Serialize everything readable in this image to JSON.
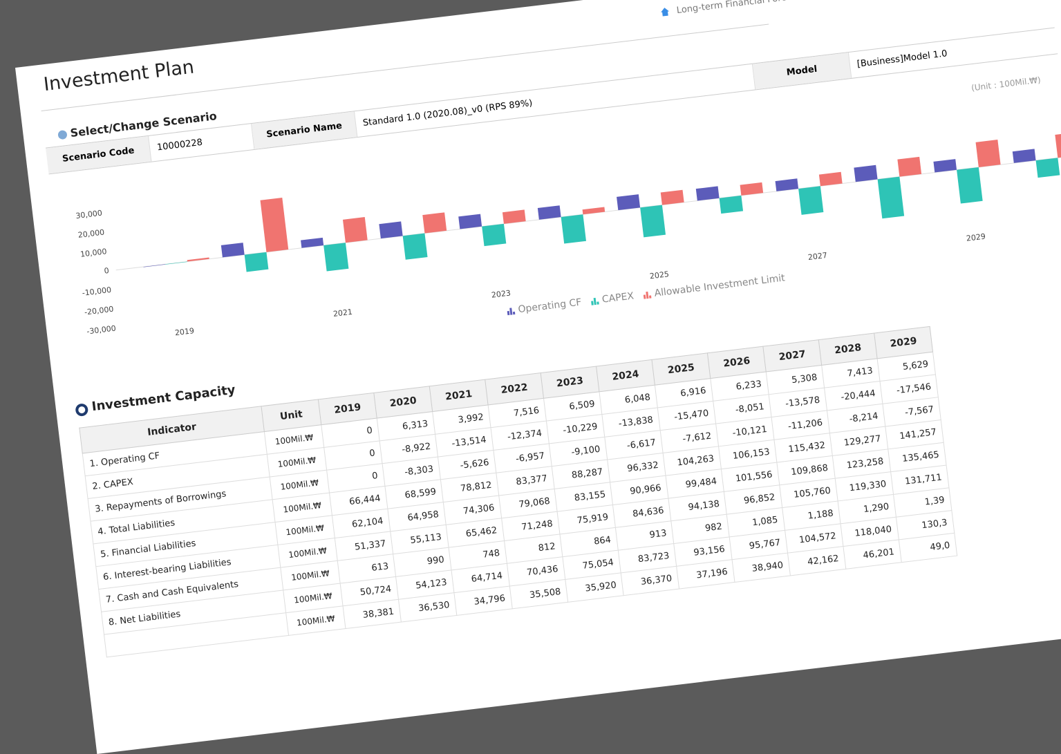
{
  "header": {
    "title": "Investment Plan",
    "breadcrumb": "Long-term Financial Forecast"
  },
  "scenario": {
    "heading": "Select/Change Scenario",
    "fields": [
      {
        "label": "Scenario Code",
        "value": "10000228"
      },
      {
        "label": "Scenario Name",
        "value": "Standard 1.0 (2020.08)_v0 (RPS 89%)"
      },
      {
        "label": "Model",
        "value": "[Business]Model 1.0"
      }
    ]
  },
  "unit_note": "(Unit : 100Mil.₩)",
  "chart_data": {
    "type": "bar",
    "categories": [
      "2019",
      null,
      "2021",
      null,
      "2023",
      null,
      "2025",
      null,
      "2027",
      null,
      "2029",
      null
    ],
    "series": [
      {
        "name": "Operating CF",
        "color": "#5c5cba",
        "values": [
          0,
          6313,
          3992,
          7516,
          6509,
          6048,
          6916,
          6233,
          5308,
          7413,
          5629,
          6000
        ]
      },
      {
        "name": "CAPEX",
        "color": "#2ec4b6",
        "values": [
          0,
          -8922,
          -13514,
          -12374,
          -10229,
          -13838,
          -15470,
          -8051,
          -13578,
          -20444,
          -17546,
          -9000
        ]
      },
      {
        "name": "Allowable Investment Limit",
        "color": "#f07470",
        "values": [
          800,
          27000,
          12000,
          9500,
          6000,
          2500,
          6500,
          5500,
          6000,
          9000,
          13000,
          12000
        ]
      }
    ],
    "ylim": [
      -30000,
      30000
    ],
    "yticks": [
      {
        "value": -30000,
        "label": "-30,000"
      },
      {
        "value": -20000,
        "label": "-20,000"
      },
      {
        "value": -10000,
        "label": "-10,000"
      },
      0,
      {
        "value": 10000,
        "label": "10,000"
      },
      {
        "value": 20000,
        "label": "20,000"
      },
      {
        "value": 30000,
        "label": "30,000"
      }
    ],
    "grid": false,
    "legend": "bottom"
  },
  "capacity": {
    "heading": "Investment Capacity",
    "columns": [
      "Indicator",
      "Unit",
      "2019",
      "2020",
      "2021",
      "2022",
      "2023",
      "2024",
      "2025",
      "2026",
      "2027",
      "2028",
      "2029"
    ],
    "rows": [
      [
        "1. Operating CF",
        "100Mil.₩",
        "0",
        "6,313",
        "3,992",
        "7,516",
        "6,509",
        "6,048",
        "6,916",
        "6,233",
        "5,308",
        "7,413",
        "5,629"
      ],
      [
        "2. CAPEX",
        "100Mil.₩",
        "0",
        "-8,922",
        "-13,514",
        "-12,374",
        "-10,229",
        "-13,838",
        "-15,470",
        "-8,051",
        "-13,578",
        "-20,444",
        "-17,546"
      ],
      [
        "3. Repayments of Borrowings",
        "100Mil.₩",
        "0",
        "-8,303",
        "-5,626",
        "-6,957",
        "-9,100",
        "-6,617",
        "-7,612",
        "-10,121",
        "-11,206",
        "-8,214",
        "-7,567"
      ],
      [
        "4. Total Liabilities",
        "100Mil.₩",
        "66,444",
        "68,599",
        "78,812",
        "83,377",
        "88,287",
        "96,332",
        "104,263",
        "106,153",
        "115,432",
        "129,277",
        "141,257"
      ],
      [
        "5. Financial Liabilities",
        "100Mil.₩",
        "62,104",
        "64,958",
        "74,306",
        "79,068",
        "83,155",
        "90,966",
        "99,484",
        "101,556",
        "109,868",
        "123,258",
        "135,465"
      ],
      [
        "6. Interest-bearing Liabilities",
        "100Mil.₩",
        "51,337",
        "55,113",
        "65,462",
        "71,248",
        "75,919",
        "84,636",
        "94,138",
        "96,852",
        "105,760",
        "119,330",
        "131,711"
      ],
      [
        "7. Cash and Cash Equivalents",
        "100Mil.₩",
        "613",
        "990",
        "748",
        "812",
        "864",
        "913",
        "982",
        "1,085",
        "1,188",
        "1,290",
        "1,39"
      ],
      [
        "8. Net Liabilities",
        "100Mil.₩",
        "50,724",
        "54,123",
        "64,714",
        "70,436",
        "75,054",
        "83,723",
        "93,156",
        "95,767",
        "104,572",
        "118,040",
        "130,3"
      ],
      [
        null,
        "100Mil.₩",
        "38,381",
        "36,530",
        "34,796",
        "35,508",
        "35,920",
        "36,370",
        "37,196",
        "38,940",
        "42,162",
        "46,201",
        "49,0"
      ]
    ]
  }
}
